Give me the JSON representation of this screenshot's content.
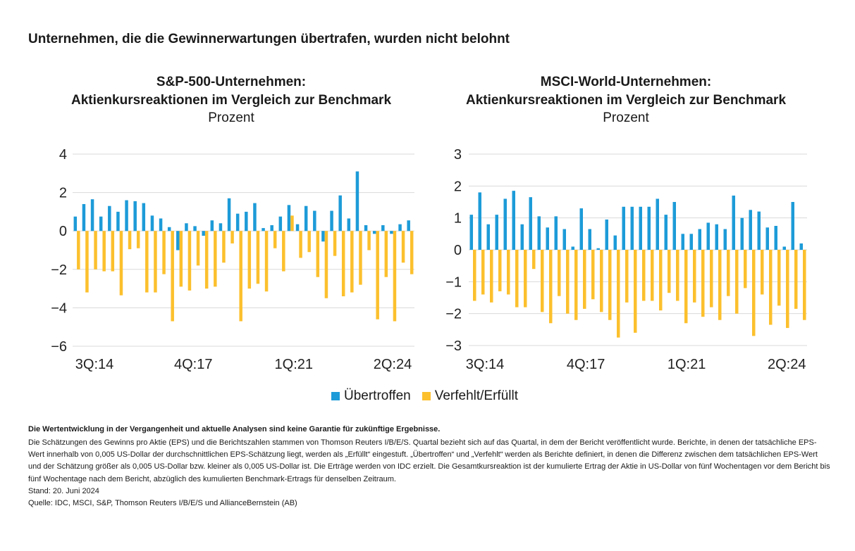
{
  "title": "Unternehmen, die die Gewinnerwartungen übertrafen, wurden nicht belohnt",
  "colors": {
    "grid": "#dadada",
    "beat": "#1d9bd8",
    "missed": "#fcc02d"
  },
  "chart_data": [
    {
      "type": "bar",
      "title": "S&P-500-Unternehmen:",
      "subtitle": "Aktienkursreaktionen im Vergleich zur Benchmark",
      "unit": "Prozent",
      "xlabel": "",
      "ylabel": "",
      "ylim": [
        -6,
        4
      ],
      "yticks": [
        4,
        2,
        0,
        -2,
        -4,
        -6
      ],
      "ytick_labels": [
        "4",
        "2",
        "0",
        "−2",
        "−4",
        "−6"
      ],
      "xtick_labels": [
        "3Q:14",
        "4Q:17",
        "1Q:21",
        "2Q:24"
      ],
      "grid": true,
      "legend": "bottom",
      "series": [
        {
          "name": "Übertroffen",
          "color": "#1d9bd8",
          "values": [
            0.75,
            1.4,
            1.65,
            0.75,
            1.3,
            1.0,
            1.6,
            1.55,
            1.45,
            0.8,
            0.65,
            0.2,
            -1.0,
            0.4,
            0.25,
            -0.25,
            0.55,
            0.4,
            1.7,
            0.9,
            1.0,
            1.45,
            0.15,
            0.3,
            0.75,
            1.35,
            0.35,
            1.3,
            1.05,
            -0.55,
            1.05,
            1.85,
            0.65,
            3.1,
            0.3,
            -0.15,
            0.3,
            -0.15,
            0.35,
            0.55
          ]
        },
        {
          "name": "Verfehlt/Erfüllt",
          "color": "#fcc02d",
          "values": [
            -2.0,
            -3.2,
            -2.0,
            -2.1,
            -2.1,
            -3.35,
            -0.95,
            -0.9,
            -3.2,
            -3.2,
            -2.25,
            -4.7,
            -2.9,
            -3.1,
            -1.8,
            -3.0,
            -2.9,
            -1.65,
            -0.65,
            -4.7,
            -3.0,
            -2.75,
            -3.15,
            -0.9,
            -2.1,
            0.8,
            -1.4,
            -1.1,
            -2.4,
            -3.5,
            -1.3,
            -3.4,
            -3.2,
            -2.8,
            -1.0,
            -4.6,
            -2.4,
            -4.7,
            -1.65,
            -2.25
          ]
        }
      ]
    },
    {
      "type": "bar",
      "title": "MSCI-World-Unternehmen:",
      "subtitle": "Aktienkursreaktionen im Vergleich zur Benchmark",
      "unit": "Prozent",
      "xlabel": "",
      "ylabel": "",
      "ylim": [
        -3,
        3
      ],
      "yticks": [
        3,
        2,
        1,
        0,
        -1,
        -2,
        -3
      ],
      "ytick_labels": [
        "3",
        "2",
        "1",
        "0",
        "−1",
        "−2",
        "−3"
      ],
      "xtick_labels": [
        "3Q:14",
        "4Q:17",
        "1Q:21",
        "2Q:24"
      ],
      "grid": true,
      "legend": "bottom",
      "series": [
        {
          "name": "Übertroffen",
          "color": "#1d9bd8",
          "values": [
            1.1,
            1.8,
            0.8,
            1.1,
            1.6,
            1.85,
            0.8,
            1.65,
            1.05,
            0.7,
            1.05,
            0.65,
            0.1,
            1.3,
            0.65,
            0.05,
            0.95,
            0.45,
            1.35,
            1.35,
            1.35,
            1.35,
            1.6,
            1.1,
            1.5,
            0.5,
            0.5,
            0.65,
            0.85,
            0.8,
            0.65,
            1.7,
            1.0,
            1.25,
            1.2,
            0.7,
            0.75,
            0.1,
            1.5,
            0.2
          ]
        },
        {
          "name": "Verfehlt/Erfüllt",
          "color": "#fcc02d",
          "values": [
            -1.6,
            -1.4,
            -1.65,
            -1.3,
            -1.4,
            -1.8,
            -1.8,
            -0.6,
            -1.95,
            -2.3,
            -1.45,
            -2.0,
            -2.2,
            -1.85,
            -1.55,
            -1.95,
            -2.2,
            -2.75,
            -1.65,
            -2.6,
            -1.6,
            -1.6,
            -1.9,
            -1.35,
            -1.6,
            -2.3,
            -1.65,
            -2.1,
            -1.8,
            -2.2,
            -1.45,
            -2.0,
            -1.2,
            -2.7,
            -1.4,
            -2.35,
            -1.75,
            -2.45,
            -1.85,
            -2.2
          ]
        }
      ]
    }
  ],
  "footnotes": {
    "disclaimer": "Die Wertentwicklung in der Vergangenheit und aktuelle Analysen sind keine Garantie für zukünftige Ergebnisse.",
    "methodology": "Die Schätzungen des Gewinns pro Aktie (EPS) und die Berichtszahlen stammen von Thomson Reuters I/B/E/S. Quartal bezieht sich auf das Quartal, in dem der Bericht veröffentlicht wurde. Berichte, in denen der tatsächliche EPS-Wert innerhalb von 0,005 US-Dollar der durchschnittlichen EPS-Schätzung liegt, werden als „Erfüllt“ eingestuft. „Übertroffen“ und „Verfehlt“ werden als Berichte definiert, in denen die Differenz zwischen dem tatsächlichen EPS-Wert und der Schätzung größer als 0,005 US-Dollar bzw. kleiner als 0,005 US-Dollar ist. Die Erträge werden von IDC erzielt. Die Gesamtkursreaktion ist der kumulierte Ertrag der Aktie in US-Dollar von fünf Wochentagen vor dem Bericht bis fünf Wochentage nach dem Bericht, abzüglich des kumulierten Benchmark-Ertrags für denselben Zeitraum.",
    "as_of": "Stand: 20. Juni 2024",
    "source": "Quelle: IDC, MSCI, S&P, Thomson Reuters I/B/E/S und AllianceBernstein (AB)"
  }
}
